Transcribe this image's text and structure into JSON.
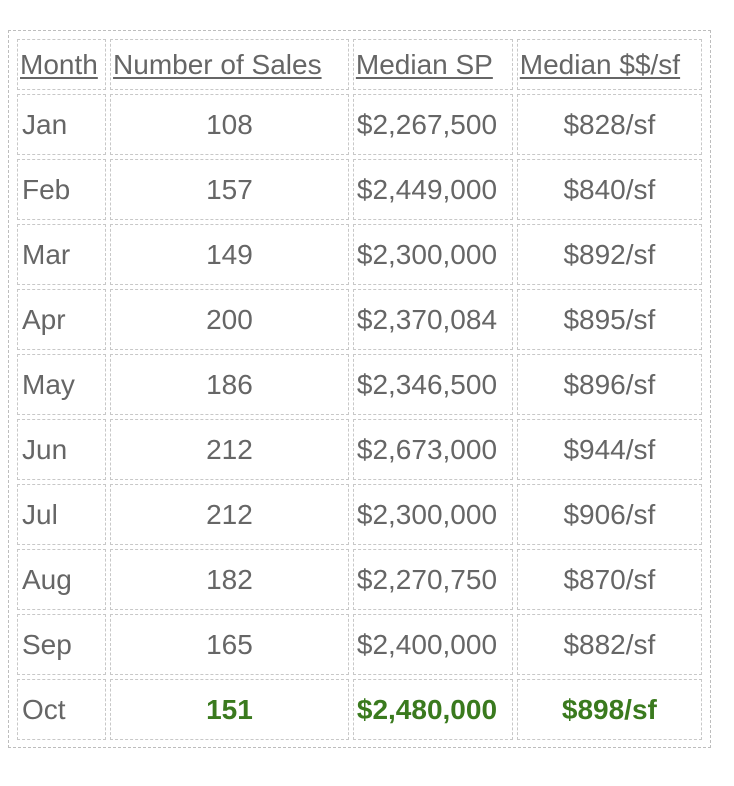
{
  "headers": {
    "month": "Month",
    "sales": "Number of Sales",
    "median_sp": "Median SP",
    "median_psf": "Median $$/sf"
  },
  "rows": [
    {
      "month": "Jan",
      "sales": "108",
      "median_sp": "$2,267,500",
      "median_psf": "$828/sf"
    },
    {
      "month": "Feb",
      "sales": "157",
      "median_sp": "$2,449,000",
      "median_psf": "$840/sf"
    },
    {
      "month": "Mar",
      "sales": "149",
      "median_sp": "$2,300,000",
      "median_psf": "$892/sf"
    },
    {
      "month": "Apr",
      "sales": "200",
      "median_sp": "$2,370,084",
      "median_psf": "$895/sf"
    },
    {
      "month": "May",
      "sales": "186",
      "median_sp": "$2,346,500",
      "median_psf": "$896/sf"
    },
    {
      "month": "Jun",
      "sales": "212",
      "median_sp": "$2,673,000",
      "median_psf": "$944/sf"
    },
    {
      "month": "Jul",
      "sales": "212",
      "median_sp": "$2,300,000",
      "median_psf": "$906/sf"
    },
    {
      "month": "Aug",
      "sales": "182",
      "median_sp": "$2,270,750",
      "median_psf": "$870/sf"
    },
    {
      "month": "Sep",
      "sales": "165",
      "median_sp": "$2,400,000",
      "median_psf": "$882/sf"
    },
    {
      "month": "Oct",
      "sales": "151",
      "median_sp": "$2,480,000",
      "median_psf": "$898/sf"
    }
  ],
  "colors": {
    "text": "#666666",
    "highlight": "#3a7a1e",
    "border": "#c8c8c8"
  }
}
